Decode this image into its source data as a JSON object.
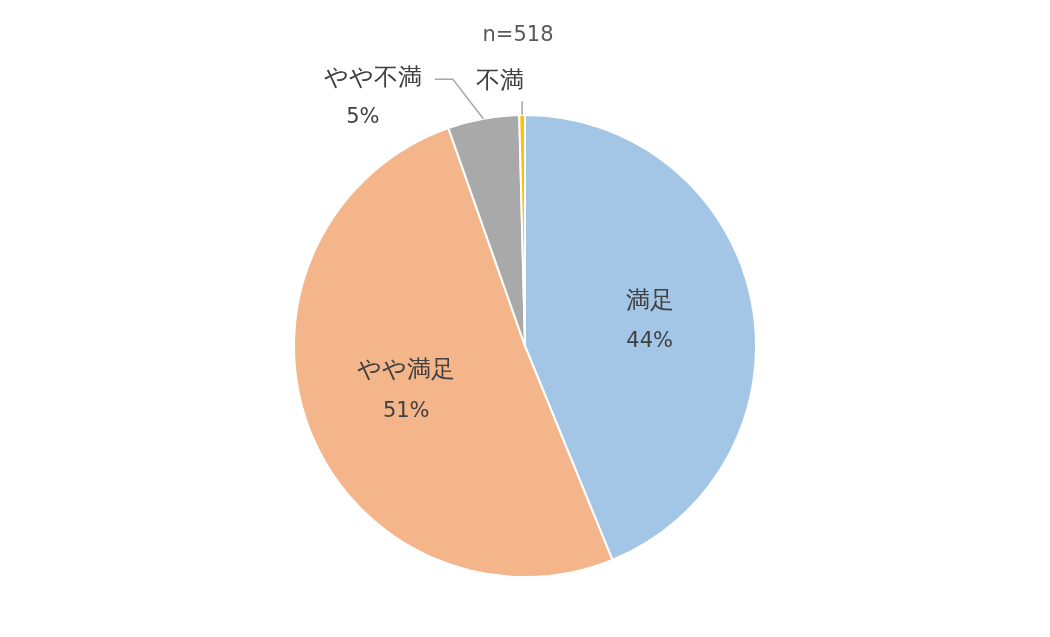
{
  "chart_data": {
    "type": "pie",
    "categories": [
      "満足",
      "やや満足",
      "やや不満",
      "不満"
    ],
    "values": [
      44,
      51,
      5,
      0.4
    ],
    "colors": [
      "#a3c5e6",
      "#f4b58a",
      "#a9a9a9",
      "#ffc000"
    ],
    "value_labels": [
      "44%",
      "51%",
      "5%",
      null
    ],
    "annotations": [
      "n=518"
    ],
    "legend": false
  }
}
